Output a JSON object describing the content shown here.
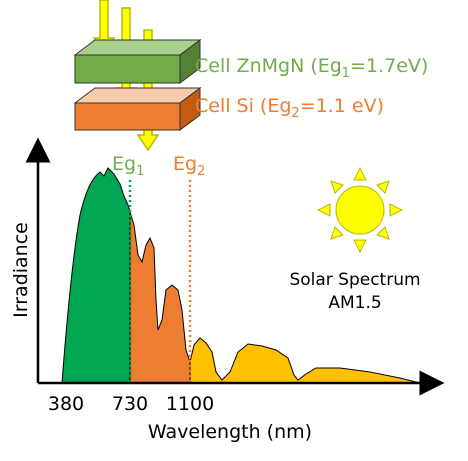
{
  "cells": [
    {
      "prefix": "Cell ZnMgN (Eg",
      "sub": "1",
      "suffix": "=1.7eV)"
    },
    {
      "prefix": "Cell Si (Eg",
      "sub": "2",
      "suffix": "=1.1 eV)"
    }
  ],
  "gaps": [
    {
      "prefix": "Eg",
      "sub": "1"
    },
    {
      "prefix": "Eg",
      "sub": "2"
    }
  ],
  "axes": {
    "y_label": "Irradiance",
    "x_label": "Wavelength (nm)",
    "x_ticks": [
      "380",
      "730",
      "1100"
    ]
  },
  "spectrum": {
    "name": "Solar Spectrum",
    "standard": "AM1.5"
  }
}
